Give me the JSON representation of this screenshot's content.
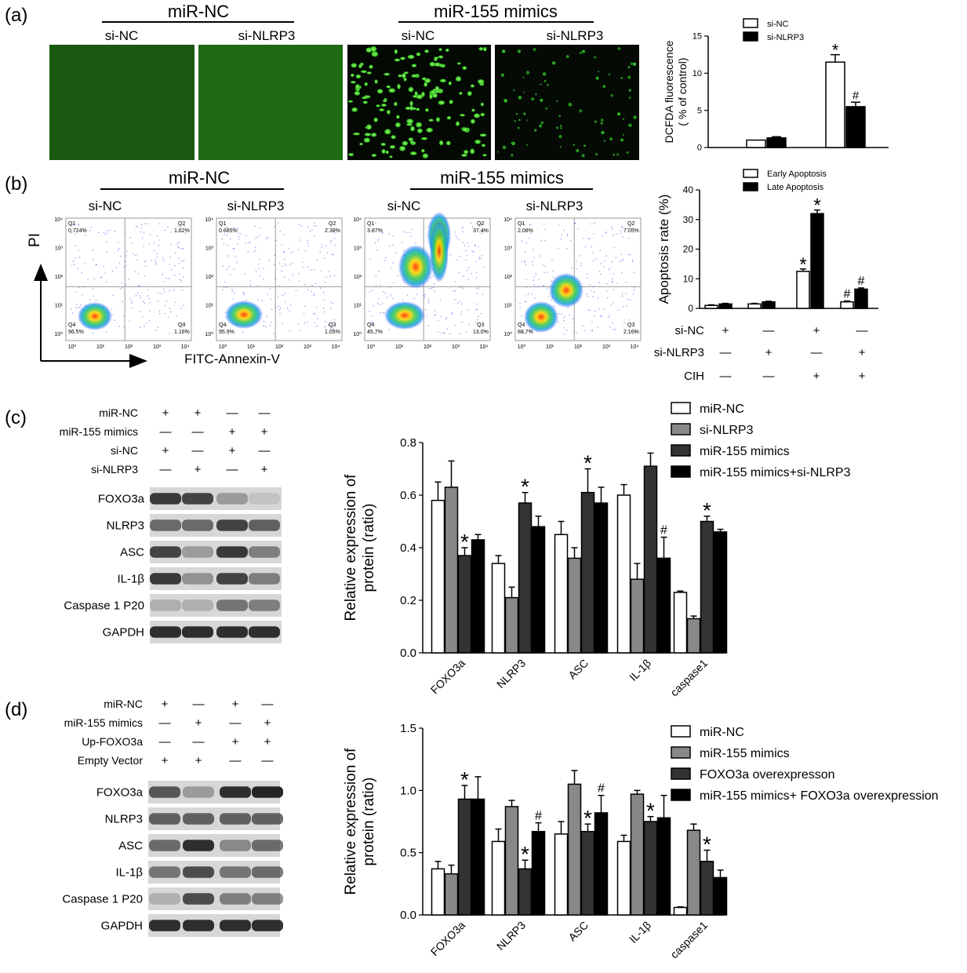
{
  "panel_labels": [
    "(a)",
    "(b)",
    "(c)",
    "(d)"
  ],
  "panel_a": {
    "group_headers": [
      "miR-NC",
      "miR-155 mimics"
    ],
    "image_labels": [
      "si-NC",
      "si-NLRP3",
      "si-NC",
      "si-NLRP3"
    ],
    "micrograph_color": "#1a7d10"
  },
  "panel_b": {
    "group_headers": [
      "miR-NC",
      "miR-155 mimics"
    ],
    "plot_labels": [
      "si-NC",
      "si-NLRP3",
      "si-NC",
      "si-NLRP3"
    ],
    "y_axis": "PI",
    "x_axis": "FITC-Annexin-V",
    "y_ticks": [
      "10⁴",
      "10³",
      "10²",
      "10¹",
      "10⁰"
    ],
    "x_ticks": [
      "10⁰",
      "10¹",
      "10²",
      "10³",
      "10⁴"
    ],
    "quadrant_names": [
      "Q1",
      "Q2",
      "Q3",
      "Q4"
    ],
    "plots": [
      {
        "q1": "0.724%",
        "q2": "1.62%",
        "q3": "1.16%",
        "q4": "96.5%"
      },
      {
        "q1": "0.685%",
        "q2": "2.39%",
        "q3": "1.05%",
        "q4": "95.9%"
      },
      {
        "q1": "3.87%",
        "q2": "37.4%",
        "q3": "13.0%",
        "q4": "45.7%"
      },
      {
        "q1": "2.08%",
        "q2": "7.05%",
        "q3": "2.16%",
        "q4": "88.7%"
      }
    ]
  },
  "panel_c_blot": {
    "conditions": [
      {
        "label": "miR-NC",
        "signs": [
          "+",
          "+",
          "—",
          "—"
        ]
      },
      {
        "label": "miR-155 mimics",
        "signs": [
          "—",
          "—",
          "+",
          "+"
        ]
      },
      {
        "label": "si-NC",
        "signs": [
          "+",
          "—",
          "+",
          "—"
        ]
      },
      {
        "label": "si-NLRP3",
        "signs": [
          "—",
          "+",
          "—",
          "+"
        ]
      }
    ],
    "bands": [
      "FOXO3a",
      "NLRP3",
      "ASC",
      "IL-1β",
      "Caspase 1 P20",
      "GAPDH"
    ]
  },
  "panel_d_blot": {
    "conditions": [
      {
        "label": "miR-NC",
        "signs": [
          "+",
          "—",
          "+",
          "—"
        ]
      },
      {
        "label": "miR-155 mimics",
        "signs": [
          "—",
          "+",
          "—",
          "+"
        ]
      },
      {
        "label": "Up-FOXO3a",
        "signs": [
          "—",
          "—",
          "+",
          "+"
        ]
      },
      {
        "label": "Empty Vector",
        "signs": [
          "+",
          "+",
          "—",
          "—"
        ]
      }
    ],
    "bands": [
      "FOXO3a",
      "NLRP3",
      "ASC",
      "IL-1β",
      "Caspase 1 P20",
      "GAPDH"
    ]
  },
  "chart_data": [
    {
      "id": "a",
      "type": "bar",
      "categories": [
        "miR-NC",
        "miR-155 mimics"
      ],
      "series": [
        {
          "name": "si-NC",
          "values": [
            1.0,
            11.5
          ],
          "errors": [
            0,
            1.0
          ],
          "marks": [
            "",
            "*"
          ],
          "fill": "#ffffff"
        },
        {
          "name": "si-NLRP3",
          "values": [
            1.3,
            5.5
          ],
          "errors": [
            0.15,
            0.6
          ],
          "marks": [
            "",
            "#"
          ],
          "fill": "#000000"
        }
      ],
      "ylabel": "DCFDA fluorescence\n( % of control)",
      "ylim": [
        0,
        15
      ],
      "yticks": [
        0,
        5,
        10,
        15
      ],
      "legend": "top-left"
    },
    {
      "id": "b",
      "type": "bar",
      "categories": [
        "1",
        "2",
        "3",
        "4"
      ],
      "series": [
        {
          "name": "Early Apoptosis",
          "values": [
            1.0,
            1.5,
            12.5,
            2.2
          ],
          "errors": [
            0.2,
            0.2,
            0.8,
            0.3
          ],
          "marks": [
            "",
            "",
            "*",
            "#"
          ],
          "fill": "#ffffff"
        },
        {
          "name": "Late Apoptosis",
          "values": [
            1.5,
            2.2,
            32.0,
            6.5
          ],
          "errors": [
            0.2,
            0.2,
            1.2,
            0.4
          ],
          "marks": [
            "",
            "",
            "*",
            "#"
          ],
          "fill": "#000000"
        }
      ],
      "ylabel": "Apoptosis  rate (%)",
      "ylim": [
        0,
        40
      ],
      "yticks": [
        0,
        10,
        20,
        30,
        40
      ],
      "legend": "top-left",
      "condition_rows": [
        {
          "label": "si-NC",
          "signs": [
            "+",
            "—",
            "+",
            "—"
          ]
        },
        {
          "label": "si-NLRP3",
          "signs": [
            "—",
            "+",
            "—",
            "+"
          ]
        },
        {
          "label": "CIH",
          "signs": [
            "—",
            "—",
            "+",
            "+"
          ]
        }
      ]
    },
    {
      "id": "c",
      "type": "bar",
      "categories": [
        "FOXO3a",
        "NLRP3",
        "ASC",
        "IL-1β",
        "caspase1"
      ],
      "series": [
        {
          "name": "miR-NC",
          "values": [
            0.58,
            0.34,
            0.45,
            0.6,
            0.23
          ],
          "errors": [
            0.07,
            0.03,
            0.05,
            0.04,
            0.005
          ],
          "marks": [
            "",
            "",
            "",
            "",
            ""
          ],
          "fill": "#ffffff"
        },
        {
          "name": "si-NLRP3",
          "values": [
            0.63,
            0.21,
            0.36,
            0.28,
            0.13
          ],
          "errors": [
            0.1,
            0.04,
            0.04,
            0.06,
            0.01
          ],
          "marks": [
            "",
            "",
            "",
            "",
            ""
          ],
          "fill": "#888888"
        },
        {
          "name": "miR-155 mimics",
          "values": [
            0.37,
            0.57,
            0.61,
            0.71,
            0.5
          ],
          "errors": [
            0.03,
            0.04,
            0.09,
            0.05,
            0.02
          ],
          "marks": [
            "*",
            "*",
            "*",
            "",
            "*"
          ],
          "fill": "#333333"
        },
        {
          "name": "miR-155 mimics+si-NLRP3",
          "values": [
            0.43,
            0.48,
            0.57,
            0.36,
            0.46
          ],
          "errors": [
            0.02,
            0.04,
            0.06,
            0.08,
            0.01
          ],
          "marks": [
            "",
            "",
            "",
            "#",
            ""
          ],
          "fill": "#000000"
        }
      ],
      "ylabel": "Relative  expression of\nprotein (ratio)",
      "ylim": [
        0,
        0.8
      ],
      "yticks": [
        "0.0",
        "0.2",
        "0.4",
        "0.6",
        "0.8"
      ],
      "legend": "top-right"
    },
    {
      "id": "d",
      "type": "bar",
      "categories": [
        "FOXO3a",
        "NLRP3",
        "ASC",
        "IL-1β",
        "caspase1"
      ],
      "series": [
        {
          "name": "miR-NC",
          "values": [
            0.37,
            0.59,
            0.65,
            0.59,
            0.06
          ],
          "errors": [
            0.06,
            0.1,
            0.1,
            0.05,
            0.005
          ],
          "marks": [
            "",
            "",
            "",
            "",
            ""
          ],
          "fill": "#ffffff"
        },
        {
          "name": "miR-155 mimics",
          "values": [
            0.33,
            0.87,
            1.05,
            0.97,
            0.68
          ],
          "errors": [
            0.07,
            0.05,
            0.11,
            0.03,
            0.05
          ],
          "marks": [
            "",
            "",
            "",
            "",
            ""
          ],
          "fill": "#888888"
        },
        {
          "name": "FOXO3a overexpresson",
          "values": [
            0.93,
            0.37,
            0.67,
            0.75,
            0.43
          ],
          "errors": [
            0.11,
            0.07,
            0.06,
            0.04,
            0.09
          ],
          "marks": [
            "*",
            "*",
            "*",
            "*",
            "*"
          ],
          "fill": "#333333"
        },
        {
          "name": "miR-155 mimics+ FOXO3a overexpression",
          "values": [
            0.93,
            0.67,
            0.82,
            0.78,
            0.3
          ],
          "errors": [
            0.18,
            0.07,
            0.14,
            0.18,
            0.06
          ],
          "marks": [
            "",
            "#",
            "#",
            "",
            ""
          ],
          "fill": "#000000"
        }
      ],
      "ylabel": "Relative  expression of\nprotein (ratio)",
      "ylim": [
        0,
        1.5
      ],
      "yticks": [
        "0.0",
        "0.5",
        "1.0",
        "1.5"
      ],
      "legend": "top-right"
    }
  ]
}
